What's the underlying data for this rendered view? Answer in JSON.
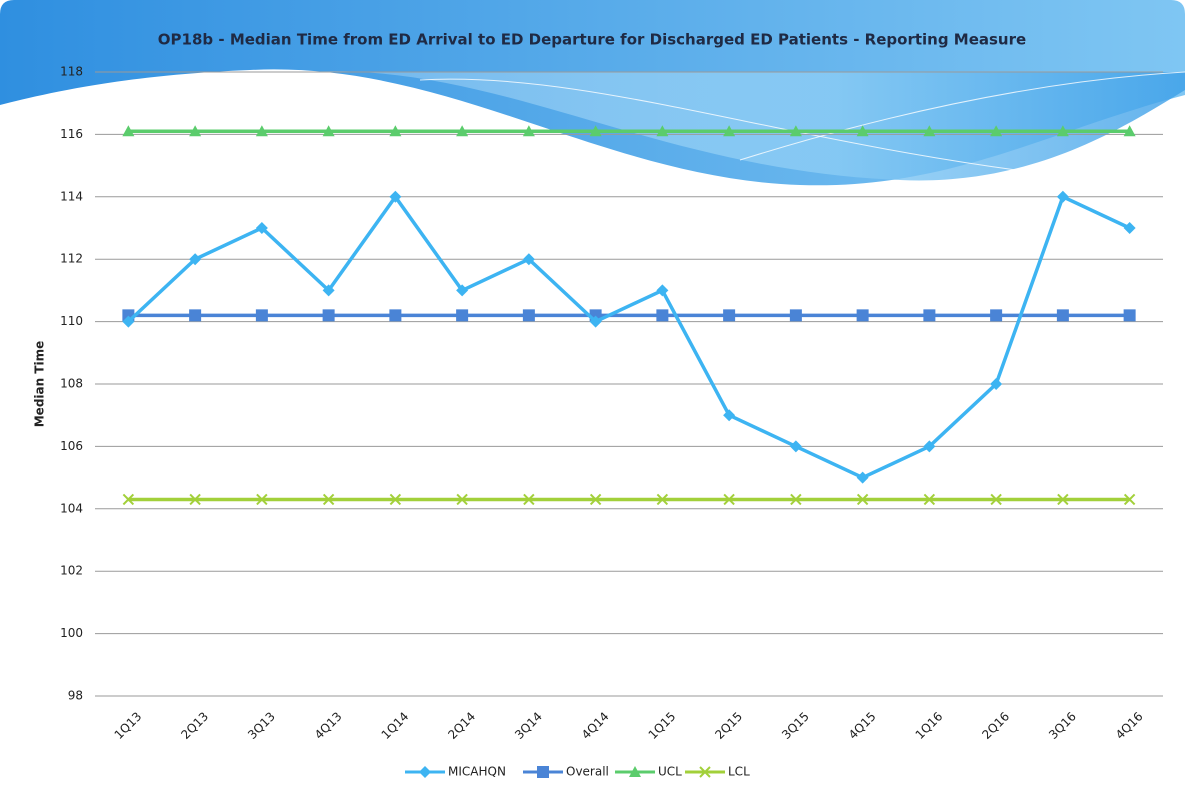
{
  "chart_data": {
    "type": "line",
    "title": "OP18b - Median Time from ED Arrival to ED Departure for Discharged ED Patients - Reporting Measure",
    "y_label": "Median Time",
    "categories": [
      "1Q13",
      "2Q13",
      "3Q13",
      "4Q13",
      "1Q14",
      "2Q14",
      "3Q14",
      "4Q14",
      "1Q15",
      "2Q15",
      "3Q15",
      "4Q15",
      "1Q16",
      "2Q16",
      "3Q16",
      "4Q16"
    ],
    "series": [
      {
        "name": "MICAHQN",
        "color": "#3db4f2",
        "marker": "diamond",
        "values": [
          110,
          112,
          113,
          111,
          114,
          111,
          112,
          110,
          111,
          107,
          106,
          105,
          106,
          108,
          114,
          113
        ]
      },
      {
        "name": "Overall",
        "color": "#4a84d6",
        "marker": "square",
        "values": [
          110.2,
          110.2,
          110.2,
          110.2,
          110.2,
          110.2,
          110.2,
          110.2,
          110.2,
          110.2,
          110.2,
          110.2,
          110.2,
          110.2,
          110.2,
          110.2
        ]
      },
      {
        "name": "UCL",
        "color": "#5bcc6c",
        "marker": "triangle",
        "values": [
          116.1,
          116.1,
          116.1,
          116.1,
          116.1,
          116.1,
          116.1,
          116.1,
          116.1,
          116.1,
          116.1,
          116.1,
          116.1,
          116.1,
          116.1,
          116.1
        ]
      },
      {
        "name": "LCL",
        "color": "#a2d03a",
        "marker": "x",
        "values": [
          104.3,
          104.3,
          104.3,
          104.3,
          104.3,
          104.3,
          104.3,
          104.3,
          104.3,
          104.3,
          104.3,
          104.3,
          104.3,
          104.3,
          104.3,
          104.3
        ]
      }
    ],
    "ylim": [
      98,
      118
    ],
    "yticks": [
      98,
      100,
      102,
      104,
      106,
      108,
      110,
      112,
      114,
      116,
      118
    ],
    "grid": true,
    "legend": "bottom"
  }
}
